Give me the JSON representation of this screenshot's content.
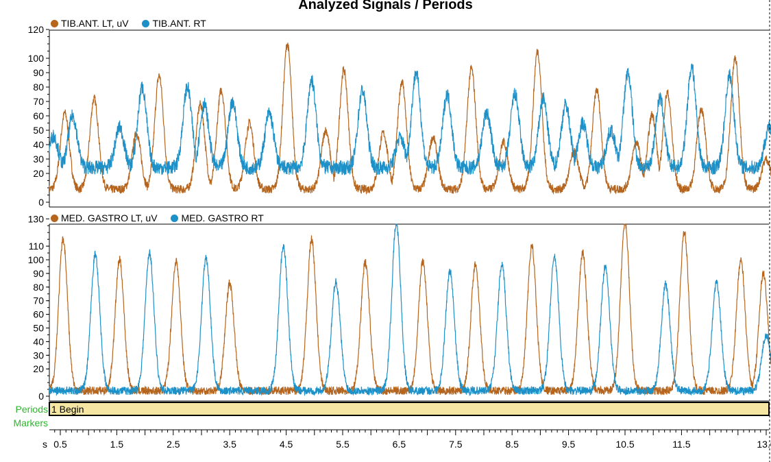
{
  "title": "Analyzed Signals / Periods",
  "colors": {
    "left": "#b5651d",
    "right": "#1e90c8",
    "period_band": "#f5e6a4",
    "label_green": "#2db52d"
  },
  "side_labels": {
    "periods": "Periods",
    "markers": "Markers"
  },
  "period_marker": {
    "label": "1 Begin"
  },
  "x_axis": {
    "unit_label": "s"
  },
  "chart_data": [
    {
      "type": "line",
      "title": "",
      "xlim": [
        0.3,
        13.1
      ],
      "ylim": [
        -5,
        122
      ],
      "yticks": [
        0,
        20,
        30,
        40,
        50,
        60,
        70,
        80,
        90,
        100,
        120
      ],
      "series": [
        {
          "name": "TIB.ANT. LT, uV",
          "color": "#b5651d",
          "peaks": [
            [
              0.58,
              62
            ],
            [
              1.1,
              72
            ],
            [
              1.85,
              48
            ],
            [
              2.25,
              88
            ],
            [
              2.98,
              68
            ],
            [
              3.35,
              78
            ],
            [
              3.85,
              55
            ],
            [
              4.52,
              110
            ],
            [
              5.2,
              50
            ],
            [
              5.52,
              92
            ],
            [
              6.22,
              48
            ],
            [
              6.55,
              84
            ],
            [
              7.1,
              45
            ],
            [
              7.78,
              93
            ],
            [
              8.35,
              42
            ],
            [
              8.95,
              105
            ],
            [
              9.6,
              35
            ],
            [
              10.0,
              78
            ],
            [
              10.7,
              42
            ],
            [
              10.98,
              61
            ],
            [
              11.25,
              76
            ],
            [
              11.85,
              65
            ],
            [
              12.45,
              100
            ],
            [
              13.0,
              30
            ]
          ],
          "baseline": 9
        },
        {
          "name": "TIB.ANT. RT",
          "color": "#1e90c8",
          "peaks": [
            [
              0.38,
              46
            ],
            [
              0.72,
              60
            ],
            [
              1.55,
              52
            ],
            [
              1.95,
              80
            ],
            [
              2.75,
              80
            ],
            [
              3.05,
              68
            ],
            [
              3.55,
              70
            ],
            [
              4.2,
              62
            ],
            [
              4.95,
              85
            ],
            [
              5.85,
              78
            ],
            [
              6.52,
              45
            ],
            [
              6.8,
              90
            ],
            [
              7.35,
              75
            ],
            [
              8.05,
              62
            ],
            [
              8.55,
              75
            ],
            [
              9.05,
              72
            ],
            [
              9.45,
              68
            ],
            [
              9.75,
              55
            ],
            [
              10.25,
              50
            ],
            [
              10.55,
              90
            ],
            [
              11.12,
              72
            ],
            [
              11.68,
              94
            ],
            [
              12.35,
              88
            ],
            [
              13.05,
              52
            ]
          ],
          "baseline": 24
        }
      ]
    },
    {
      "type": "line",
      "title": "",
      "xlim": [
        0.3,
        13.1
      ],
      "ylim": [
        -5,
        132
      ],
      "yticks": [
        0,
        20,
        30,
        40,
        50,
        60,
        70,
        80,
        90,
        100,
        110,
        130
      ],
      "series": [
        {
          "name": "MED. GASTRO LT, uV",
          "color": "#b5651d",
          "peaks": [
            [
              0.55,
              115
            ],
            [
              1.55,
              100
            ],
            [
              2.55,
              99
            ],
            [
              3.5,
              83
            ],
            [
              4.95,
              115
            ],
            [
              5.9,
              98
            ],
            [
              6.92,
              99
            ],
            [
              7.85,
              97
            ],
            [
              8.85,
              110
            ],
            [
              9.75,
              105
            ],
            [
              10.5,
              128
            ],
            [
              11.55,
              120
            ],
            [
              12.55,
              100
            ],
            [
              12.95,
              90
            ]
          ],
          "baseline": 4
        },
        {
          "name": "MED. GASTRO RT",
          "color": "#1e90c8",
          "peaks": [
            [
              1.12,
              104
            ],
            [
              2.08,
              105
            ],
            [
              3.08,
              101
            ],
            [
              4.45,
              110
            ],
            [
              5.38,
              84
            ],
            [
              6.45,
              127
            ],
            [
              7.4,
              92
            ],
            [
              8.32,
              96
            ],
            [
              9.25,
              102
            ],
            [
              10.15,
              95
            ],
            [
              11.22,
              82
            ],
            [
              12.12,
              83
            ],
            [
              13.0,
              45
            ]
          ],
          "baseline": 4
        }
      ]
    }
  ],
  "x_ticks": [
    "0.5",
    "1.5",
    "2.5",
    "3.5",
    "4.5",
    "5.5",
    "6.5",
    "7.5",
    "8.5",
    "9.5",
    "10.5",
    "11.5",
    "13.0"
  ]
}
